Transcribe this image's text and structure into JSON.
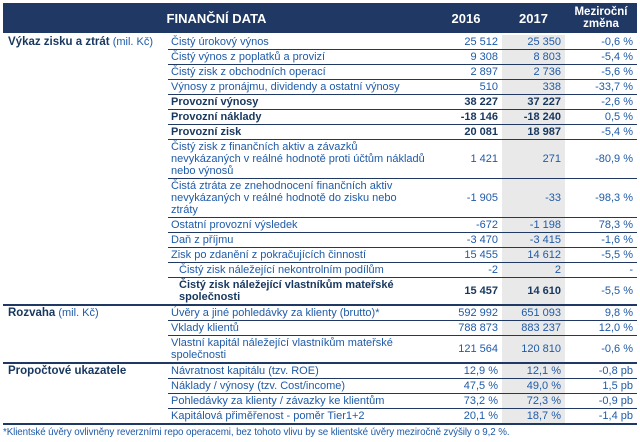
{
  "header": {
    "title": "FINANČNÍ DATA",
    "col_2016": "2016",
    "col_2017": "2017",
    "col_change": "Meziroční změna"
  },
  "colors": {
    "header_bg": "#1F3864",
    "text_blue": "#1F5BA8",
    "dark_navy": "#17375E",
    "col_2017_bg": "#E9E9E9",
    "border_navy": "#1F3864"
  },
  "sections": [
    {
      "category": "Výkaz zisku a ztrát",
      "unit": "(mil. Kč)",
      "rows": [
        {
          "label": "Čistý úrokový výnos",
          "v2016": "25 512",
          "v2017": "25 350",
          "change": "-0,6 %",
          "bold": false,
          "indent": false
        },
        {
          "label": "Čistý výnos z poplatků a provizí",
          "v2016": "9 308",
          "v2017": "8 803",
          "change": "-5,4 %",
          "bold": false,
          "indent": false
        },
        {
          "label": "Čistý zisk z obchodních operací",
          "v2016": "2 897",
          "v2017": "2 736",
          "change": "-5,6 %",
          "bold": false,
          "indent": false
        },
        {
          "label": "Výnosy z pronájmu, dividendy a ostatní výnosy",
          "v2016": "510",
          "v2017": "338",
          "change": "-33,7 %",
          "bold": false,
          "indent": false
        },
        {
          "label": "Provozní výnosy",
          "v2016": "38 227",
          "v2017": "37 227",
          "change": "-2,6 %",
          "bold": true,
          "indent": false
        },
        {
          "label": "Provozní náklady",
          "v2016": "-18 146",
          "v2017": "-18 240",
          "change": "0,5 %",
          "bold": true,
          "indent": false
        },
        {
          "label": "Provozní zisk",
          "v2016": "20 081",
          "v2017": "18 987",
          "change": "-5,4 %",
          "bold": true,
          "indent": false
        },
        {
          "label": "Čistý zisk z finančních aktiv a závazků nevykázaných v reálné hodnotě proti účtům nákladů nebo výnosů",
          "v2016": "1 421",
          "v2017": "271",
          "change": "-80,9 %",
          "bold": false,
          "indent": false
        },
        {
          "label": "Čistá ztráta ze znehodnocení finančních aktiv nevykázaných v reálné hodnotě do zisku nebo ztráty",
          "v2016": "-1 905",
          "v2017": "-33",
          "change": "-98,3 %",
          "bold": false,
          "indent": false
        },
        {
          "label": "Ostatní provozní výsledek",
          "v2016": "-672",
          "v2017": "-1 198",
          "change": "78,3 %",
          "bold": false,
          "indent": false
        },
        {
          "label": "Daň z příjmu",
          "v2016": "-3 470",
          "v2017": "-3 415",
          "change": "-1,6 %",
          "bold": false,
          "indent": false
        },
        {
          "label": "Zisk po zdanění z pokračujících činností",
          "v2016": "15 455",
          "v2017": "14 612",
          "change": "-5,5 %",
          "bold": false,
          "indent": false
        },
        {
          "label": "Čistý zisk náležející nekontrolním podílům",
          "v2016": "-2",
          "v2017": "2",
          "change": "-",
          "bold": false,
          "indent": true
        },
        {
          "label": "Čistý zisk náležející vlastníkům mateřské společnosti",
          "v2016": "15 457",
          "v2017": "14 610",
          "change": "-5,5 %",
          "bold": true,
          "indent": true
        }
      ]
    },
    {
      "category": "Rozvaha",
      "unit": "(mil. Kč)",
      "rows": [
        {
          "label": "Úvěry a jiné pohledávky za klienty (brutto)*",
          "v2016": "592 992",
          "v2017": "651 093",
          "change": "9,8 %",
          "bold": false,
          "indent": false
        },
        {
          "label": "Vklady klientů",
          "v2016": "788 873",
          "v2017": "883 237",
          "change": "12,0 %",
          "bold": false,
          "indent": false
        },
        {
          "label": "Vlastní kapitál náležející vlastníkům mateřské společnosti",
          "v2016": "121 564",
          "v2017": "120 810",
          "change": "-0,6 %",
          "bold": false,
          "indent": false
        }
      ]
    },
    {
      "category": "Propočtové ukazatele",
      "unit": "",
      "rows": [
        {
          "label": "Návratnost kapitálu (tzv. ROE)",
          "v2016": "12,9 %",
          "v2017": "12,1 %",
          "change": "-0,8 pb",
          "bold": false,
          "indent": false
        },
        {
          "label": "Náklady / výnosy (tzv. Cost/income)",
          "v2016": "47,5 %",
          "v2017": "49,0 %",
          "change": "1,5 pb",
          "bold": false,
          "indent": false
        },
        {
          "label": "Pohledávky za klienty / závazky ke klientům",
          "v2016": "73,2 %",
          "v2017": "72,3 %",
          "change": "-0,9 pb",
          "bold": false,
          "indent": false
        },
        {
          "label": "Kapitálová přiměřenost - poměr Tier1+2",
          "v2016": "20,1 %",
          "v2017": "18,7 %",
          "change": "-1,4 pb",
          "bold": false,
          "indent": false
        }
      ]
    }
  ],
  "footnote": "*Klientské úvěry ovlivněny reverzními repo operacemi, bez tohoto vlivu by se klientské úvěry meziročně zvýšily o 9,2 %."
}
